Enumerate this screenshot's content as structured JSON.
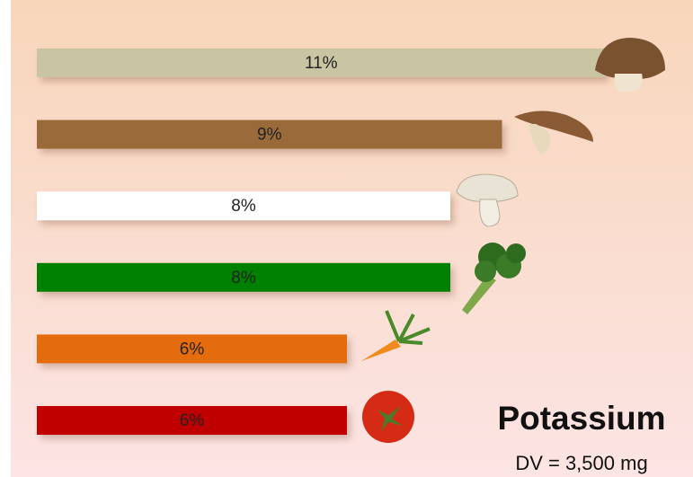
{
  "chart_data": {
    "type": "bar",
    "title": "Potassium",
    "subtitle": "DV = 3,500 mg",
    "values": [
      11,
      9,
      8,
      8,
      6,
      6
    ],
    "value_labels": [
      "11%",
      "9%",
      "8%",
      "8%",
      "6%",
      "6%"
    ],
    "colors": [
      "#c9c4a2",
      "#9b6a3a",
      "#ffffff",
      "#008000",
      "#e46c0a",
      "#c00000"
    ]
  }
}
